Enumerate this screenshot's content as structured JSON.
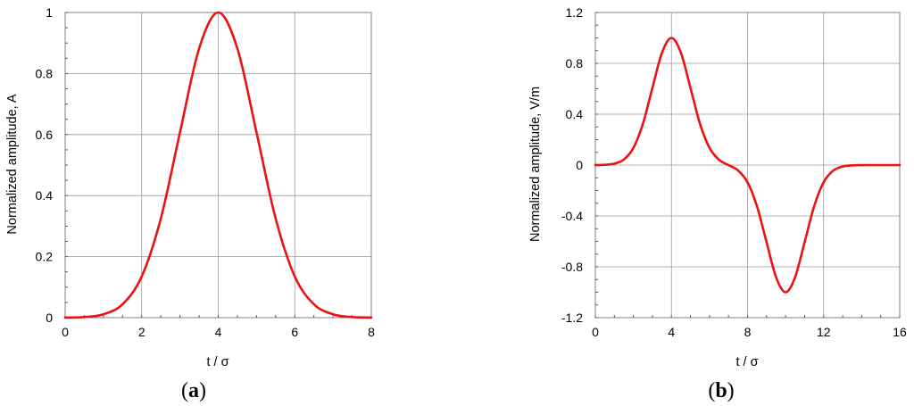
{
  "colors": {
    "series": "#ee1111",
    "grid": "#9a9a9a"
  },
  "chart_data": [
    {
      "id": "a",
      "type": "line",
      "caption": {
        "open": "(",
        "letter": "a",
        "close": ")"
      },
      "xlabel": "t / σ",
      "ylabel": "Normalized amplitude, A",
      "xlim": [
        0,
        8
      ],
      "ylim": [
        0,
        1
      ],
      "grid": true,
      "x_ticks": [
        0,
        2,
        4,
        6,
        8
      ],
      "x_tick_labels": [
        "0",
        "2",
        "4",
        "6",
        "8"
      ],
      "y_ticks": [
        0,
        0.2,
        0.4,
        0.6,
        0.8,
        1
      ],
      "y_tick_labels": [
        "0",
        "0.2",
        "0.4",
        "0.6",
        "0.8",
        "1"
      ],
      "series": [
        {
          "x": [
            0,
            0.5,
            1,
            1.5,
            2,
            2.5,
            3,
            3.5,
            4,
            4.5,
            5,
            5.5,
            6,
            6.5,
            7,
            7.5,
            8
          ],
          "y": [
            0.0003,
            0.002,
            0.011,
            0.044,
            0.135,
            0.325,
            0.607,
            0.882,
            1.0,
            0.882,
            0.607,
            0.325,
            0.135,
            0.044,
            0.011,
            0.002,
            0.0003
          ]
        }
      ]
    },
    {
      "id": "b",
      "type": "line",
      "caption": {
        "open": "(",
        "letter": "b",
        "close": ")"
      },
      "xlabel": "t / σ",
      "ylabel": "Normalized amplitude, V/m",
      "xlim": [
        0,
        16
      ],
      "ylim": [
        -1.2,
        1.2
      ],
      "grid": true,
      "x_ticks": [
        0,
        4,
        8,
        12,
        16
      ],
      "x_tick_labels": [
        "0",
        "4",
        "8",
        "12",
        "16"
      ],
      "y_ticks": [
        -1.2,
        -0.8,
        -0.4,
        0,
        0.4,
        0.8,
        1.2
      ],
      "y_tick_labels": [
        "-1.2",
        "-0.8",
        "-0.4",
        "0",
        "0.4",
        "0.8",
        "1.2"
      ],
      "series": [
        {
          "x": [
            0,
            0.5,
            1,
            1.5,
            2,
            2.5,
            3,
            3.5,
            4,
            4.5,
            5,
            5.5,
            6,
            6.5,
            7,
            7.5,
            8,
            8.5,
            9,
            9.5,
            10,
            10.5,
            11,
            11.5,
            12,
            12.5,
            13,
            13.5,
            14,
            14.5,
            15,
            15.5,
            16
          ],
          "y": [
            0.0003,
            0.002,
            0.011,
            0.044,
            0.135,
            0.325,
            0.607,
            0.882,
            1.0,
            0.882,
            0.607,
            0.325,
            0.135,
            0.042,
            0.0,
            -0.042,
            -0.135,
            -0.325,
            -0.607,
            -0.882,
            -1.0,
            -0.882,
            -0.607,
            -0.325,
            -0.135,
            -0.044,
            -0.011,
            -0.002,
            -0.0003,
            0,
            0,
            0,
            0
          ]
        }
      ]
    }
  ]
}
